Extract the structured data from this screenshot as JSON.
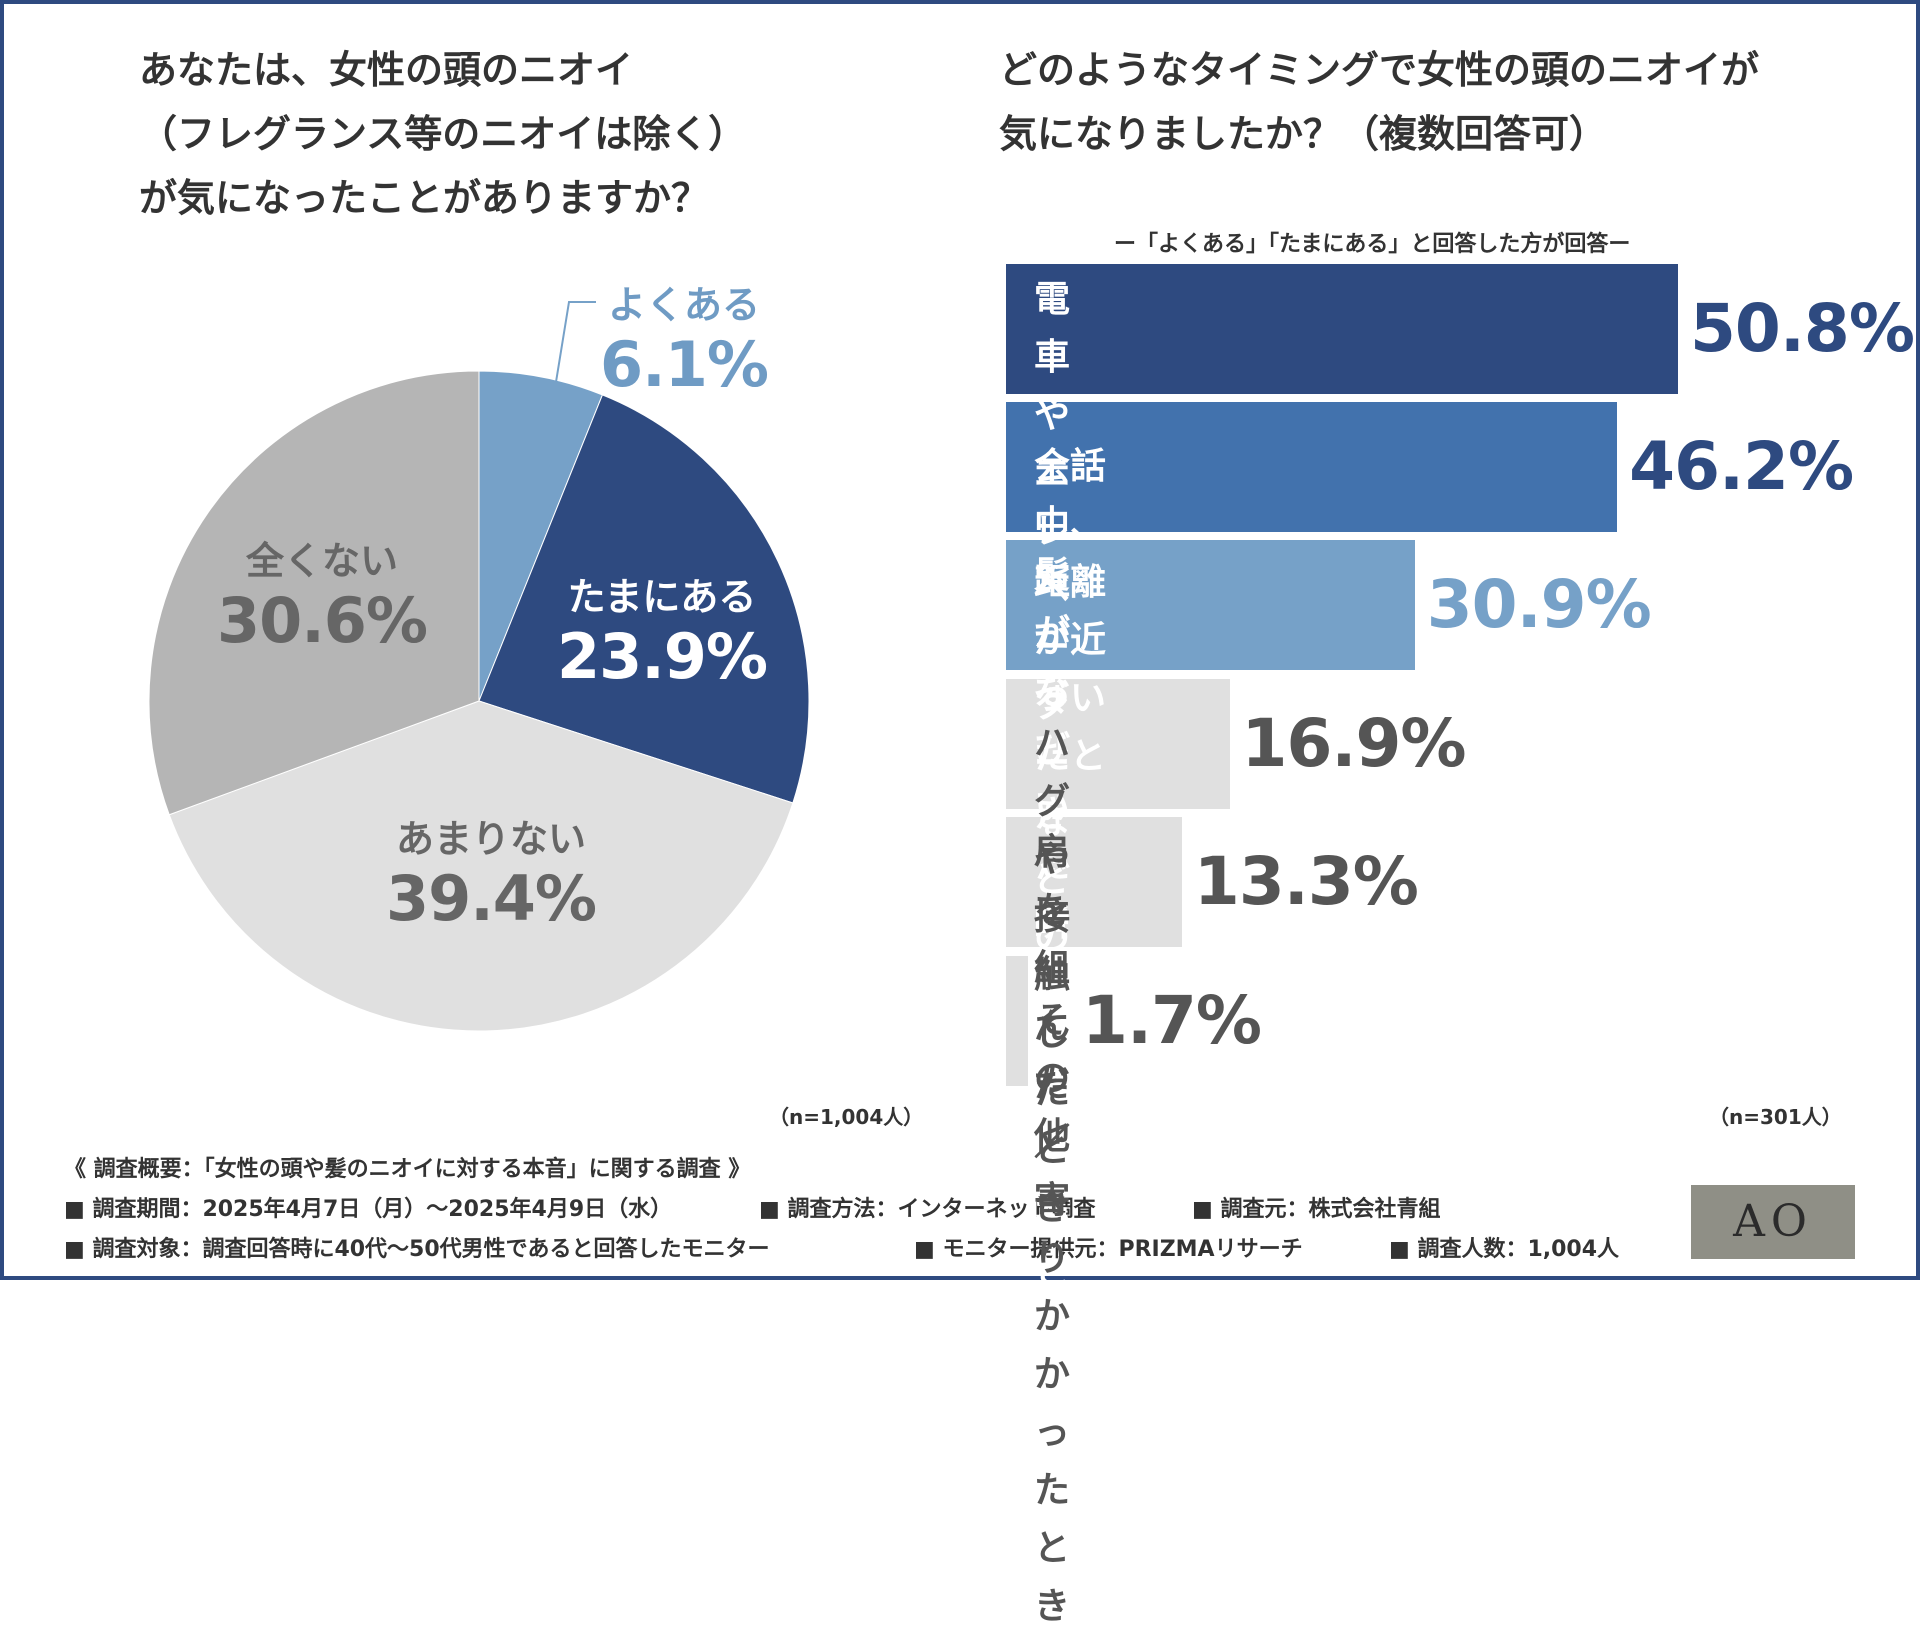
{
  "left_title": "あなたは、女性の頭のニオイ\n（フレグランス等のニオイは除く）\nが気になったことがありますか？",
  "right_title": "どのようなタイミングで女性の頭のニオイが\n気になりましたか？（複数回答可）",
  "left_n": "（n=1,004人）",
  "right_n": "（n=301人）",
  "chart_data": [
    {
      "type": "pie",
      "title": "あなたは、女性の頭のニオイ（フレグランス等のニオイは除く）が気になったことがありますか？",
      "labels": [
        "よくある",
        "たまにある",
        "あまりない",
        "全くない"
      ],
      "values": [
        6.1,
        23.9,
        39.4,
        30.6
      ],
      "value_labels": [
        "6.1%",
        "23.9%",
        "39.4%",
        "30.6%"
      ],
      "colors": [
        "#76a1c8",
        "#2e4a80",
        "#e0e0e0",
        "#b5b5b5"
      ]
    },
    {
      "type": "bar",
      "orientation": "horizontal",
      "title": "どのようなタイミングで女性の頭のニオイが気になりましたか？（複数回答可）",
      "subtitle": "ー「よくある」「たまにある」と回答した方が回答ー",
      "categories": [
        "電車やエレベーターなどの\n密閉空間で",
        "会話中、距離が近づいたとき",
        "髪がなびいた瞬間に\n香ったとき",
        "ハグや接触したとき",
        "肩を組んだ／\n寄りかかったとき",
        "その他"
      ],
      "values": [
        50.8,
        46.2,
        30.9,
        16.9,
        13.3,
        1.7
      ],
      "value_labels": [
        "50.8%",
        "46.2%",
        "30.9%",
        "16.9%",
        "13.3%",
        "1.7%"
      ],
      "colors": [
        "#2e4a80",
        "#4272ad",
        "#76a1c8",
        "#e0e0e0",
        "#e0e0e0",
        "#e0e0e0"
      ],
      "text_colors": [
        "#ffffff",
        "#ffffff",
        "#ffffff",
        "#555555",
        "#555555",
        "#555555"
      ],
      "pct_colors": [
        "#2e4a80",
        "#2e4a80",
        "#76a1c8",
        "#555555",
        "#555555",
        "#555555"
      ]
    }
  ],
  "summary": {
    "header": "《 調査概要：「女性の頭や髪のニオイに対する本音」に関する調査 》",
    "period": "■ 調査期間：2025年4月7日（月）～2025年4月9日（水）",
    "method": "■ 調査方法：インターネット調査",
    "source": "■ 調査元：株式会社青組",
    "target": "■ 調査対象：調査回答時に40代～50代男性であると回答したモニター",
    "provider": "■ モニター提供元：PRIZMAリサーチ",
    "count": "■ 調査人数：1,004人"
  },
  "logo_text": "AO"
}
